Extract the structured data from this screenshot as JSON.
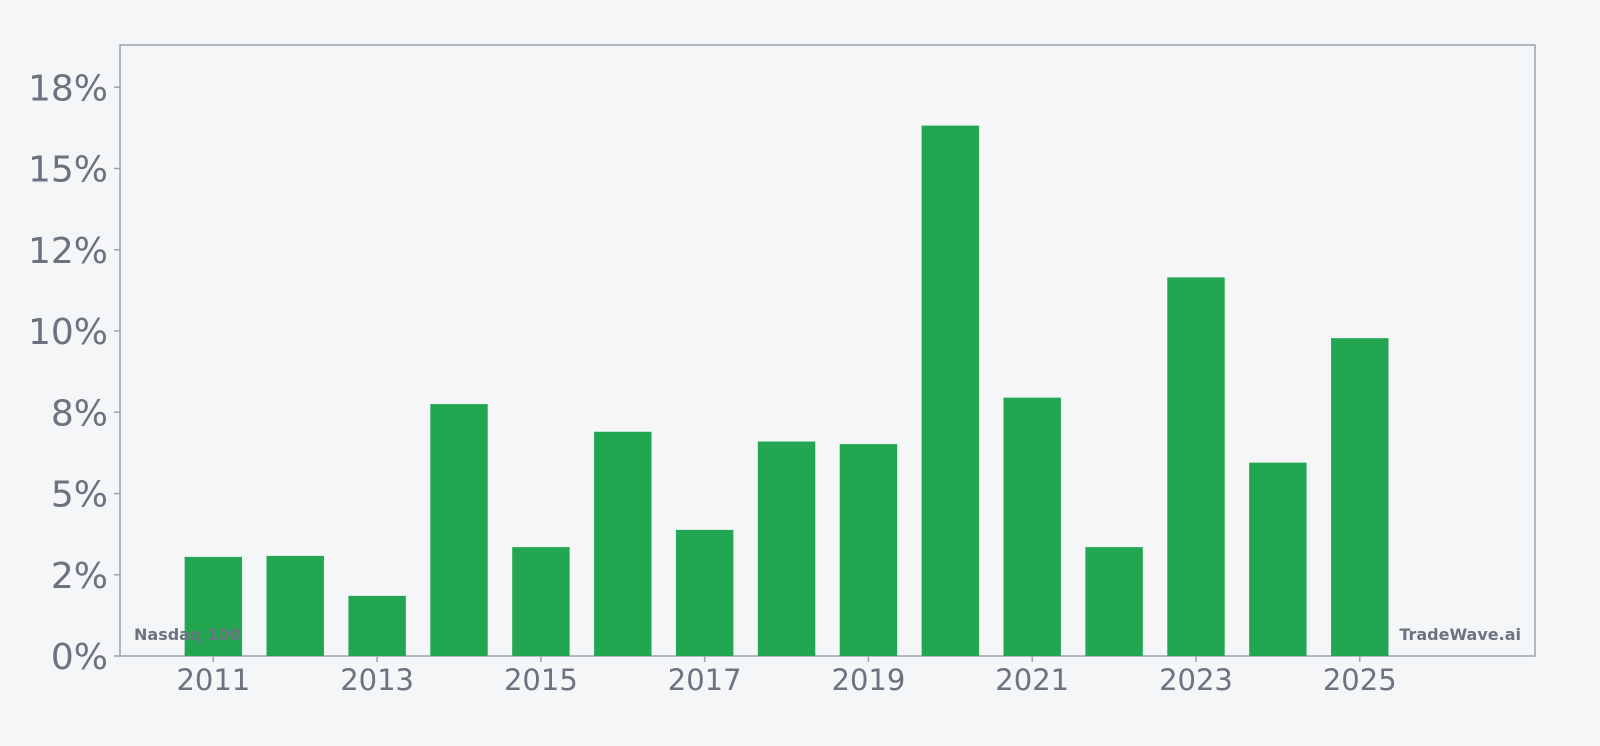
{
  "chart_data": {
    "type": "bar",
    "x": [
      2011,
      2012,
      2013,
      2014,
      2015,
      2016,
      2017,
      2018,
      2019,
      2020,
      2021,
      2022,
      2023,
      2024,
      2025
    ],
    "values": [
      3.05,
      3.08,
      1.85,
      7.75,
      3.35,
      6.9,
      3.88,
      6.6,
      6.52,
      16.32,
      7.95,
      3.35,
      11.65,
      5.95,
      9.78
    ],
    "y_unit": "%",
    "ylim": [
      0,
      18.8
    ],
    "xlim": [
      2009.86,
      2027.14
    ],
    "yticks": [
      0,
      2.5,
      5,
      7.5,
      10,
      12.5,
      15,
      17.5
    ],
    "ytick_labels": [
      "0%",
      "2%",
      "5%",
      "8%",
      "10%",
      "12%",
      "15%",
      "18%"
    ],
    "xticks": [
      2011,
      2013,
      2015,
      2017,
      2019,
      2021,
      2023,
      2025
    ],
    "xtick_labels": [
      "2011",
      "2013",
      "2015",
      "2017",
      "2019",
      "2021",
      "2023",
      "2025"
    ],
    "bar_color": "#22a652",
    "axis_color": "#9ca3af",
    "tick_label_color": "#6b7280",
    "grid": false,
    "watermark_left": "Nasdaq 100",
    "watermark_right": "TradeWave.ai"
  }
}
